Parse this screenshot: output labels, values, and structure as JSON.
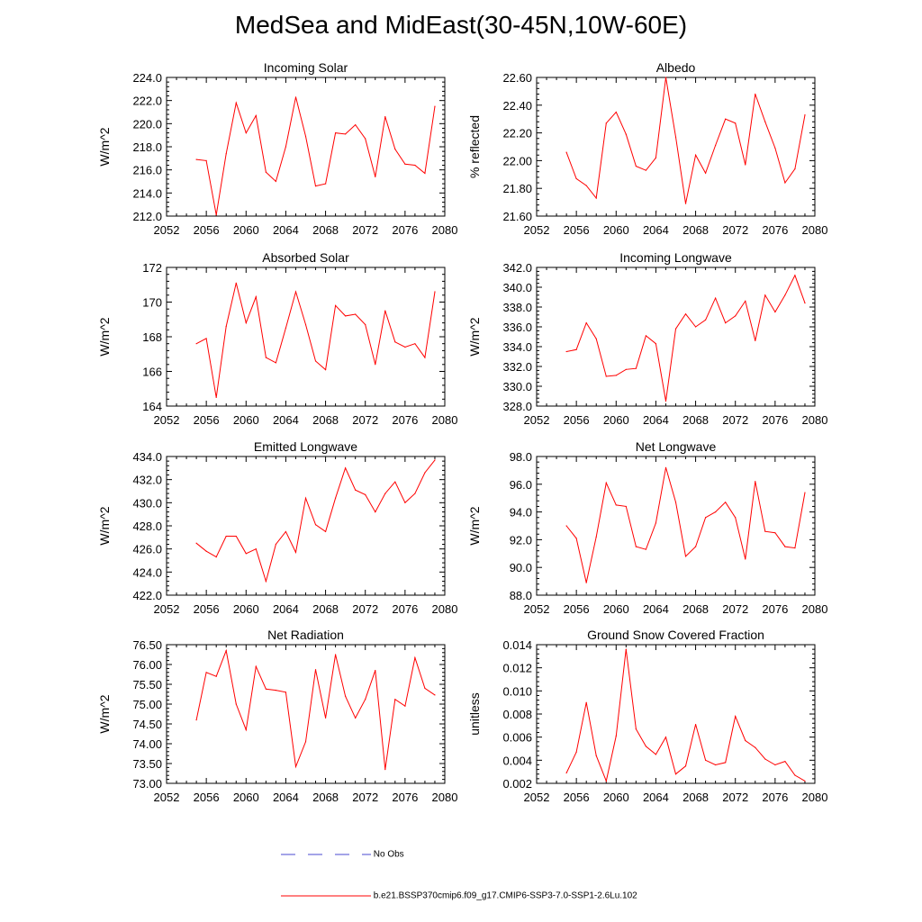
{
  "page": {
    "title": "MedSea and MidEast(30-45N,10W-60E)"
  },
  "legend": [
    {
      "label": "No Obs",
      "color": "#4a4ad0",
      "dash": true
    },
    {
      "label": "b.e21.BSSP370cmip6.f09_g17.CMIP6-SSP3-7.0-SSP1-2.6Lu.102",
      "color": "#ff0000",
      "dash": false
    }
  ],
  "chart_data": [
    {
      "type": "line",
      "title": "Incoming Solar",
      "ylabel": "W/m^2",
      "xlim": [
        2052,
        2080
      ],
      "ylim": [
        212,
        224
      ],
      "xticks": [
        2052,
        2056,
        2060,
        2064,
        2068,
        2072,
        2076,
        2080
      ],
      "xtick_labels": [
        "2052",
        "2056",
        "2060",
        "2064",
        "2068",
        "2072",
        "2076",
        "2080"
      ],
      "yticks": [
        212,
        214,
        216,
        218,
        220,
        222,
        224
      ],
      "ytick_labels": [
        "212.0",
        "214.0",
        "216.0",
        "218.0",
        "220.0",
        "222.0",
        "224.0"
      ],
      "color": "#ff0000",
      "x": [
        2055,
        2056,
        2057,
        2058,
        2059,
        2060,
        2061,
        2062,
        2063,
        2064,
        2065,
        2066,
        2067,
        2068,
        2069,
        2070,
        2071,
        2072,
        2073,
        2074,
        2075,
        2076,
        2077,
        2078,
        2079
      ],
      "y": [
        216.9,
        216.8,
        212.1,
        217.4,
        221.8,
        219.2,
        220.7,
        215.8,
        215.0,
        218.0,
        222.3,
        218.9,
        214.6,
        214.8,
        219.2,
        219.1,
        219.9,
        218.7,
        215.4,
        220.6,
        217.8,
        216.5,
        216.4,
        215.7,
        221.5
      ]
    },
    {
      "type": "line",
      "title": "Albedo",
      "ylabel": "% reflected",
      "xlim": [
        2052,
        2080
      ],
      "ylim": [
        21.6,
        22.6
      ],
      "xticks": [
        2052,
        2056,
        2060,
        2064,
        2068,
        2072,
        2076,
        2080
      ],
      "xtick_labels": [
        "2052",
        "2056",
        "2060",
        "2064",
        "2068",
        "2072",
        "2076",
        "2080"
      ],
      "yticks": [
        21.6,
        21.8,
        22.0,
        22.2,
        22.4,
        22.6
      ],
      "ytick_labels": [
        "21.60",
        "21.80",
        "22.00",
        "22.20",
        "22.40",
        "22.60"
      ],
      "color": "#ff0000",
      "x": [
        2055,
        2056,
        2057,
        2058,
        2059,
        2060,
        2061,
        2062,
        2063,
        2064,
        2065,
        2066,
        2067,
        2068,
        2069,
        2070,
        2071,
        2072,
        2073,
        2074,
        2075,
        2076,
        2077,
        2078,
        2079
      ],
      "y": [
        22.06,
        21.87,
        21.82,
        21.73,
        22.27,
        22.35,
        22.19,
        21.96,
        21.93,
        22.02,
        22.6,
        22.17,
        21.69,
        22.04,
        21.91,
        22.11,
        22.3,
        22.27,
        21.97,
        22.48,
        22.28,
        22.09,
        21.84,
        21.94,
        22.33
      ]
    },
    {
      "type": "line",
      "title": "Absorbed Solar",
      "ylabel": "W/m^2",
      "xlim": [
        2052,
        2080
      ],
      "ylim": [
        164,
        172
      ],
      "xticks": [
        2052,
        2056,
        2060,
        2064,
        2068,
        2072,
        2076,
        2080
      ],
      "xtick_labels": [
        "2052",
        "2056",
        "2060",
        "2064",
        "2068",
        "2072",
        "2076",
        "2080"
      ],
      "yticks": [
        164,
        166,
        168,
        170,
        172
      ],
      "ytick_labels": [
        "164",
        "166",
        "168",
        "170",
        "172"
      ],
      "color": "#ff0000",
      "x": [
        2055,
        2056,
        2057,
        2058,
        2059,
        2060,
        2061,
        2062,
        2063,
        2064,
        2065,
        2066,
        2067,
        2068,
        2069,
        2070,
        2071,
        2072,
        2073,
        2074,
        2075,
        2076,
        2077,
        2078,
        2079
      ],
      "y": [
        167.6,
        167.9,
        164.5,
        168.6,
        171.1,
        168.8,
        170.3,
        166.8,
        166.5,
        168.5,
        170.6,
        168.7,
        166.6,
        166.1,
        169.8,
        169.2,
        169.3,
        168.7,
        166.4,
        169.5,
        167.7,
        167.4,
        167.6,
        166.8,
        170.6
      ]
    },
    {
      "type": "line",
      "title": "Incoming Longwave",
      "ylabel": "W/m^2",
      "xlim": [
        2052,
        2080
      ],
      "ylim": [
        328,
        342
      ],
      "xticks": [
        2052,
        2056,
        2060,
        2064,
        2068,
        2072,
        2076,
        2080
      ],
      "xtick_labels": [
        "2052",
        "2056",
        "2060",
        "2064",
        "2068",
        "2072",
        "2076",
        "2080"
      ],
      "yticks": [
        328,
        330,
        332,
        334,
        336,
        338,
        340,
        342
      ],
      "ytick_labels": [
        "328.0",
        "330.0",
        "332.0",
        "334.0",
        "336.0",
        "338.0",
        "340.0",
        "342.0"
      ],
      "color": "#ff0000",
      "x": [
        2055,
        2056,
        2057,
        2058,
        2059,
        2060,
        2061,
        2062,
        2063,
        2064,
        2065,
        2066,
        2067,
        2068,
        2069,
        2070,
        2071,
        2072,
        2073,
        2074,
        2075,
        2076,
        2077,
        2078,
        2079
      ],
      "y": [
        333.5,
        333.7,
        336.4,
        334.8,
        331.0,
        331.1,
        331.7,
        331.8,
        335.1,
        334.3,
        328.5,
        335.8,
        337.3,
        336.0,
        336.7,
        338.9,
        336.4,
        337.1,
        338.6,
        334.6,
        339.2,
        337.5,
        339.2,
        341.2,
        338.4
      ]
    },
    {
      "type": "line",
      "title": "Emitted Longwave",
      "ylabel": "W/m^2",
      "xlim": [
        2052,
        2080
      ],
      "ylim": [
        422,
        434
      ],
      "xticks": [
        2052,
        2056,
        2060,
        2064,
        2068,
        2072,
        2076,
        2080
      ],
      "xtick_labels": [
        "2052",
        "2056",
        "2060",
        "2064",
        "2068",
        "2072",
        "2076",
        "2080"
      ],
      "yticks": [
        422,
        424,
        426,
        428,
        430,
        432,
        434
      ],
      "ytick_labels": [
        "422.0",
        "424.0",
        "426.0",
        "428.0",
        "430.0",
        "432.0",
        "434.0"
      ],
      "color": "#ff0000",
      "x": [
        2055,
        2056,
        2057,
        2058,
        2059,
        2060,
        2061,
        2062,
        2063,
        2064,
        2065,
        2066,
        2067,
        2068,
        2069,
        2070,
        2071,
        2072,
        2073,
        2074,
        2075,
        2076,
        2077,
        2078,
        2079
      ],
      "y": [
        426.5,
        425.8,
        425.3,
        427.1,
        427.1,
        425.6,
        426.0,
        423.2,
        426.4,
        427.5,
        425.7,
        430.4,
        428.1,
        427.5,
        430.4,
        433.0,
        431.1,
        430.7,
        429.2,
        430.8,
        431.8,
        430.0,
        430.8,
        432.6,
        433.7
      ]
    },
    {
      "type": "line",
      "title": "Net Longwave",
      "ylabel": "W/m^2",
      "xlim": [
        2052,
        2080
      ],
      "ylim": [
        88,
        98
      ],
      "xticks": [
        2052,
        2056,
        2060,
        2064,
        2068,
        2072,
        2076,
        2080
      ],
      "xtick_labels": [
        "2052",
        "2056",
        "2060",
        "2064",
        "2068",
        "2072",
        "2076",
        "2080"
      ],
      "yticks": [
        88,
        90,
        92,
        94,
        96,
        98
      ],
      "ytick_labels": [
        "88.0",
        "90.0",
        "92.0",
        "94.0",
        "96.0",
        "98.0"
      ],
      "color": "#ff0000",
      "x": [
        2055,
        2056,
        2057,
        2058,
        2059,
        2060,
        2061,
        2062,
        2063,
        2064,
        2065,
        2066,
        2067,
        2068,
        2069,
        2070,
        2071,
        2072,
        2073,
        2074,
        2075,
        2076,
        2077,
        2078,
        2079
      ],
      "y": [
        93.0,
        92.1,
        88.9,
        92.2,
        96.1,
        94.5,
        94.4,
        91.5,
        91.3,
        93.2,
        97.2,
        94.7,
        90.8,
        91.5,
        93.6,
        94.0,
        94.7,
        93.6,
        90.6,
        96.2,
        92.6,
        92.5,
        91.5,
        91.4,
        95.4
      ]
    },
    {
      "type": "line",
      "title": "Net Radiation",
      "ylabel": "W/m^2",
      "xlim": [
        2052,
        2080
      ],
      "ylim": [
        73.0,
        76.5
      ],
      "xticks": [
        2052,
        2056,
        2060,
        2064,
        2068,
        2072,
        2076,
        2080
      ],
      "xtick_labels": [
        "2052",
        "2056",
        "2060",
        "2064",
        "2068",
        "2072",
        "2076",
        "2080"
      ],
      "yticks": [
        73.0,
        73.5,
        74.0,
        74.5,
        75.0,
        75.5,
        76.0,
        76.5
      ],
      "ytick_labels": [
        "73.00",
        "73.50",
        "74.00",
        "74.50",
        "75.00",
        "75.50",
        "76.00",
        "76.50"
      ],
      "color": "#ff0000",
      "x": [
        2055,
        2056,
        2057,
        2058,
        2059,
        2060,
        2061,
        2062,
        2063,
        2064,
        2065,
        2066,
        2067,
        2068,
        2069,
        2070,
        2071,
        2072,
        2073,
        2074,
        2075,
        2076,
        2077,
        2078,
        2079
      ],
      "y": [
        74.6,
        75.8,
        75.7,
        76.35,
        75.0,
        74.35,
        75.95,
        75.38,
        75.35,
        75.3,
        73.42,
        74.05,
        75.87,
        74.65,
        76.25,
        75.2,
        74.65,
        75.12,
        75.85,
        73.35,
        75.12,
        74.95,
        76.17,
        75.4,
        75.23
      ]
    },
    {
      "type": "line",
      "title": "Ground Snow Covered Fraction",
      "ylabel": "unitless",
      "xlim": [
        2052,
        2080
      ],
      "ylim": [
        0.002,
        0.014
      ],
      "xticks": [
        2052,
        2056,
        2060,
        2064,
        2068,
        2072,
        2076,
        2080
      ],
      "xtick_labels": [
        "2052",
        "2056",
        "2060",
        "2064",
        "2068",
        "2072",
        "2076",
        "2080"
      ],
      "yticks": [
        0.002,
        0.004,
        0.006,
        0.008,
        0.01,
        0.012,
        0.014
      ],
      "ytick_labels": [
        "0.002",
        "0.004",
        "0.006",
        "0.008",
        "0.010",
        "0.012",
        "0.014"
      ],
      "color": "#ff0000",
      "x": [
        2055,
        2056,
        2057,
        2058,
        2059,
        2060,
        2061,
        2062,
        2063,
        2064,
        2065,
        2066,
        2067,
        2068,
        2069,
        2070,
        2071,
        2072,
        2073,
        2074,
        2075,
        2076,
        2077,
        2078,
        2079
      ],
      "y": [
        0.0029,
        0.0047,
        0.009,
        0.0044,
        0.0022,
        0.0061,
        0.0136,
        0.0067,
        0.0052,
        0.0045,
        0.006,
        0.0028,
        0.0035,
        0.0071,
        0.004,
        0.0036,
        0.0038,
        0.0078,
        0.0057,
        0.0051,
        0.0041,
        0.0036,
        0.0039,
        0.0027,
        0.0022
      ]
    }
  ]
}
